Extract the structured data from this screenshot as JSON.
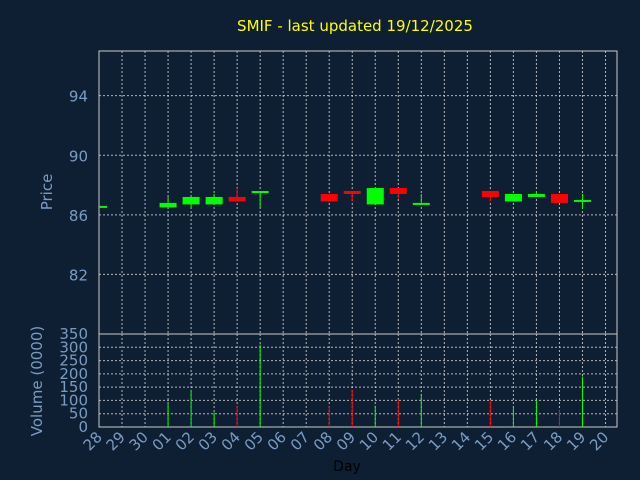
{
  "chart_data": [
    {
      "type": "candlestick",
      "title": "SMIF - last updated 19/12/2025",
      "ylabel": "Price",
      "ylim": [
        78,
        97
      ],
      "yticks": [
        82,
        86,
        90,
        94
      ],
      "grid": true,
      "colors": {
        "up": "#00ff00",
        "down": "#ff0000",
        "background": "#0f1f33",
        "text": "#7a9cc4",
        "title": "#ffff00"
      },
      "candles": [
        {
          "day": "28",
          "open": 86.6,
          "close": 86.6,
          "high": 86.6,
          "low": 86.6
        },
        {
          "day": "01",
          "open": 86.5,
          "close": 86.8,
          "high": 87.2,
          "low": 86.5
        },
        {
          "day": "02",
          "open": 86.7,
          "close": 87.2,
          "high": 87.2,
          "low": 86.5
        },
        {
          "day": "03",
          "open": 86.7,
          "close": 87.2,
          "high": 87.4,
          "low": 86.7
        },
        {
          "day": "04",
          "open": 87.2,
          "close": 86.9,
          "high": 87.8,
          "low": 86.9
        },
        {
          "day": "05",
          "open": 87.5,
          "close": 87.6,
          "high": 87.6,
          "low": 86.5
        },
        {
          "day": "08",
          "open": 87.4,
          "close": 86.9,
          "high": 87.4,
          "low": 86.9
        },
        {
          "day": "09",
          "open": 87.6,
          "close": 87.4,
          "high": 87.6,
          "low": 86.9
        },
        {
          "day": "10",
          "open": 86.7,
          "close": 87.8,
          "high": 87.8,
          "low": 86.7
        },
        {
          "day": "11",
          "open": 87.8,
          "close": 87.4,
          "high": 87.8,
          "low": 87.1
        },
        {
          "day": "12",
          "open": 86.7,
          "close": 86.8,
          "high": 87.4,
          "low": 86.7
        },
        {
          "day": "15",
          "open": 87.6,
          "close": 87.2,
          "high": 87.6,
          "low": 86.9
        },
        {
          "day": "16",
          "open": 86.9,
          "close": 87.4,
          "high": 87.4,
          "low": 86.9
        },
        {
          "day": "17",
          "open": 87.2,
          "close": 87.4,
          "high": 87.6,
          "low": 87.2
        },
        {
          "day": "18",
          "open": 87.4,
          "close": 86.8,
          "high": 87.4,
          "low": 86.8
        },
        {
          "day": "19",
          "open": 86.9,
          "close": 87.0,
          "high": 87.4,
          "low": 86.4
        }
      ]
    },
    {
      "type": "bar",
      "ylabel": "Volume (0000)",
      "xlabel": "Day",
      "ylim": [
        0,
        350
      ],
      "yticks": [
        0,
        50,
        100,
        150,
        200,
        250,
        300,
        350
      ],
      "grid": true,
      "categories": [
        "28",
        "29",
        "30",
        "01",
        "02",
        "03",
        "04",
        "05",
        "06",
        "07",
        "08",
        "09",
        "10",
        "11",
        "12",
        "13",
        "14",
        "15",
        "16",
        "17",
        "18",
        "19",
        "20"
      ],
      "volumes": [
        {
          "day": "01",
          "value": 90,
          "dir": "up"
        },
        {
          "day": "02",
          "value": 140,
          "dir": "up"
        },
        {
          "day": "03",
          "value": 55,
          "dir": "up"
        },
        {
          "day": "04",
          "value": 80,
          "dir": "down"
        },
        {
          "day": "05",
          "value": 310,
          "dir": "up"
        },
        {
          "day": "08",
          "value": 80,
          "dir": "down"
        },
        {
          "day": "09",
          "value": 140,
          "dir": "down"
        },
        {
          "day": "10",
          "value": 80,
          "dir": "up"
        },
        {
          "day": "11",
          "value": 105,
          "dir": "down"
        },
        {
          "day": "12",
          "value": 125,
          "dir": "up"
        },
        {
          "day": "15",
          "value": 100,
          "dir": "down"
        },
        {
          "day": "16",
          "value": 75,
          "dir": "up"
        },
        {
          "day": "17",
          "value": 100,
          "dir": "up"
        },
        {
          "day": "18",
          "value": 65,
          "dir": "down"
        },
        {
          "day": "19",
          "value": 190,
          "dir": "up"
        }
      ]
    }
  ]
}
